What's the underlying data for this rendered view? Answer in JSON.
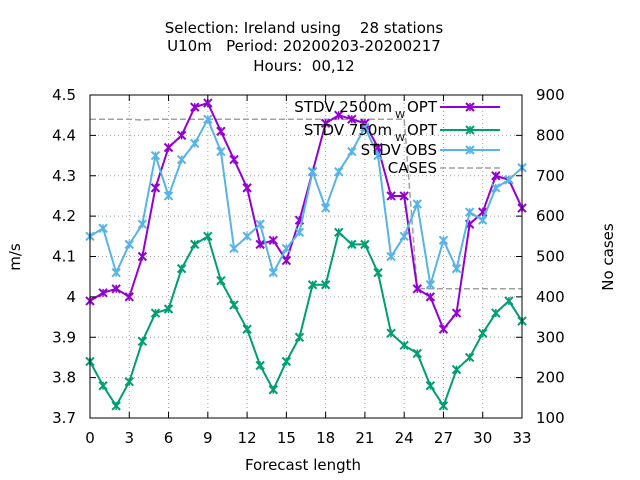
{
  "chart_data": {
    "type": "line",
    "title_lines": [
      "Selection: Ireland using    28 stations",
      "U10m   Period: 20200203-20200217",
      "Hours:  00,12"
    ],
    "xlabel": "Forecast length",
    "ylabel": "m/s",
    "y2label": "No cases",
    "xlim": [
      0,
      33
    ],
    "ylim": [
      3.7,
      4.5
    ],
    "y2lim": [
      100,
      900
    ],
    "xticks": [
      0,
      3,
      6,
      9,
      12,
      15,
      18,
      21,
      24,
      27,
      30,
      33
    ],
    "yticks": [
      "3.7",
      "3.8",
      "3.9",
      "4",
      "4.1",
      "4.2",
      "4.3",
      "4.4",
      "4.5"
    ],
    "y2ticks": [
      100,
      200,
      300,
      400,
      500,
      600,
      700,
      800,
      900
    ],
    "grid": true,
    "legend_position": "top-right",
    "x": [
      0,
      1,
      2,
      3,
      4,
      5,
      6,
      7,
      8,
      9,
      10,
      11,
      12,
      13,
      14,
      15,
      16,
      17,
      18,
      19,
      20,
      21,
      22,
      23,
      24,
      25,
      26,
      27,
      28,
      29,
      30,
      31,
      32,
      33
    ],
    "series": [
      {
        "name": "STDV 2500m",
        "name_sub": "W",
        "name_suffix": "OPT",
        "color": "#9400d3",
        "axis": "y1",
        "marker": "x",
        "values": [
          3.99,
          4.01,
          4.02,
          4.0,
          4.1,
          4.27,
          4.37,
          4.4,
          4.47,
          4.48,
          4.41,
          4.34,
          4.27,
          4.13,
          4.14,
          4.09,
          4.19,
          4.31,
          4.43,
          4.45,
          4.44,
          4.43,
          4.37,
          4.25,
          4.25,
          4.02,
          4.0,
          3.92,
          3.96,
          4.18,
          4.21,
          4.3,
          4.29,
          4.22
        ]
      },
      {
        "name": "STDV 750m",
        "name_sub": "W",
        "name_suffix": "OPT",
        "color": "#009e73",
        "axis": "y1",
        "marker": "x",
        "values": [
          3.84,
          3.78,
          3.73,
          3.79,
          3.89,
          3.96,
          3.97,
          4.07,
          4.13,
          4.15,
          4.04,
          3.98,
          3.92,
          3.83,
          3.77,
          3.84,
          3.9,
          4.03,
          4.03,
          4.16,
          4.13,
          4.13,
          4.06,
          3.91,
          3.88,
          3.86,
          3.78,
          3.73,
          3.82,
          3.85,
          3.91,
          3.96,
          3.99,
          3.94
        ]
      },
      {
        "name": "STDV OBS",
        "color": "#56b4e9",
        "axis": "y1",
        "marker": "x",
        "values": [
          4.15,
          4.17,
          4.06,
          4.13,
          4.18,
          4.35,
          4.25,
          4.34,
          4.38,
          4.44,
          4.36,
          4.12,
          4.15,
          4.18,
          4.06,
          4.12,
          4.16,
          4.31,
          4.22,
          4.31,
          4.36,
          4.42,
          4.35,
          4.1,
          4.15,
          4.23,
          4.03,
          4.14,
          4.07,
          4.21,
          4.19,
          4.27,
          4.29,
          4.32
        ]
      },
      {
        "name": "CASES",
        "color": "#a0a0a0",
        "axis": "y2",
        "dashed": true,
        "values": [
          840,
          840,
          840,
          840,
          838,
          840,
          840,
          840,
          840,
          840,
          840,
          840,
          840,
          840,
          840,
          840,
          840,
          840,
          840,
          840,
          840,
          840,
          840,
          840,
          840,
          420,
          420,
          420,
          420,
          420,
          420,
          420,
          420,
          420
        ]
      }
    ]
  }
}
